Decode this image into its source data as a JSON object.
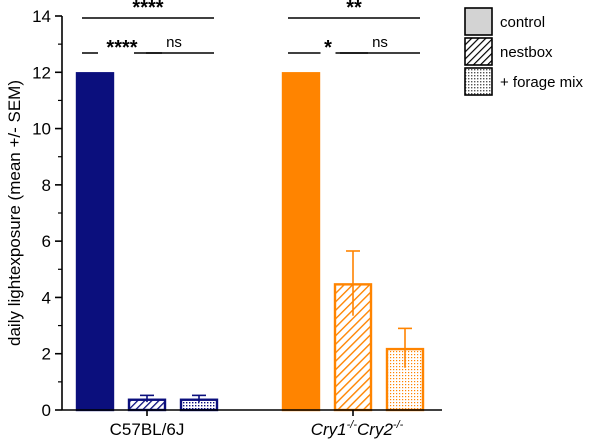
{
  "chart_data": {
    "type": "bar",
    "ylabel": "daily lightexposure (mean +/-  SEM)",
    "ylim": [
      0,
      14
    ],
    "yticks": [
      0,
      2,
      4,
      6,
      8,
      10,
      12,
      14
    ],
    "groups": [
      {
        "label_parts": [
          {
            "t": "C57BL/6J",
            "sup": false,
            "italic": false
          }
        ]
      },
      {
        "label_parts": [
          {
            "t": "Cry1",
            "sup": false,
            "italic": true
          },
          {
            "t": "-/-",
            "sup": true,
            "italic": true
          },
          {
            "t": "Cry2",
            "sup": false,
            "italic": true
          },
          {
            "t": "-/-",
            "sup": true,
            "italic": true
          }
        ]
      }
    ],
    "group_colors": [
      "#0b0f7d",
      "#ff8400"
    ],
    "conditions": [
      "control",
      "nestbox",
      "+ forage mix"
    ],
    "bars": [
      {
        "group": 0,
        "condition": 0,
        "value": 12.0,
        "sem": 0
      },
      {
        "group": 0,
        "condition": 1,
        "value": 0.4,
        "sem": 0.12
      },
      {
        "group": 0,
        "condition": 2,
        "value": 0.4,
        "sem": 0.12
      },
      {
        "group": 1,
        "condition": 0,
        "value": 12.0,
        "sem": 0
      },
      {
        "group": 1,
        "condition": 1,
        "value": 4.5,
        "sem": 1.15
      },
      {
        "group": 1,
        "condition": 2,
        "value": 2.2,
        "sem": 0.7
      }
    ],
    "significance": [
      {
        "group": 0,
        "from": 0,
        "to": 2,
        "label": "****",
        "level": 1
      },
      {
        "group": 0,
        "from": 0,
        "to": 1,
        "label": "****",
        "level": 0
      },
      {
        "group": 0,
        "from": 1,
        "to": 2,
        "label": "ns",
        "level": 0
      },
      {
        "group": 1,
        "from": 0,
        "to": 2,
        "label": "**",
        "level": 1
      },
      {
        "group": 1,
        "from": 0,
        "to": 1,
        "label": "*",
        "level": 0
      },
      {
        "group": 1,
        "from": 1,
        "to": 2,
        "label": "ns",
        "level": 0
      }
    ],
    "legend": {
      "position": "top-right"
    }
  }
}
